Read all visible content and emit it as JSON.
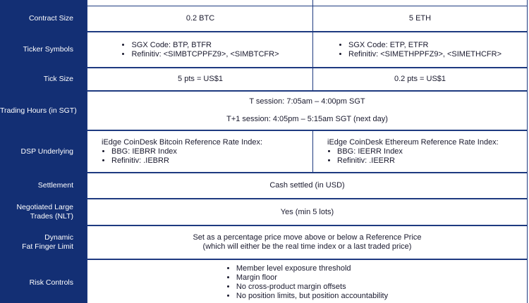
{
  "table": {
    "rows": [
      {
        "label": [
          "Contract Size"
        ],
        "cells": [
          {
            "lines": [
              "0.2 BTC"
            ]
          },
          {
            "lines": [
              "5 ETH"
            ]
          }
        ]
      },
      {
        "label": [
          "Ticker Symbols"
        ],
        "cells": [
          {
            "bullets": [
              "SGX Code: BTP, BTFR",
              "Refinitiv: <SIMBTCPPFZ9>, <SIMBTCFR>"
            ]
          },
          {
            "bullets": [
              "SGX Code: ETP, ETFR",
              "Refinitiv: <SIMETHPPFZ9>, <SIMETHCFR>"
            ]
          }
        ]
      },
      {
        "label": [
          "Tick Size"
        ],
        "cells": [
          {
            "lines": [
              "5 pts = US$1"
            ]
          },
          {
            "lines": [
              "0.2 pts = US$1"
            ]
          }
        ]
      },
      {
        "label": [
          "Trading Hours (in SGT)"
        ],
        "cells": [
          {
            "lines": [
              "T session: 7:05am – 4:00pm SGT",
              "T+1 session: 4:05pm – 5:15am SGT (next day)"
            ]
          }
        ]
      },
      {
        "label": [
          "DSP Underlying"
        ],
        "cells": [
          {
            "heading": "iEdge CoinDesk Bitcoin Reference Rate Index:",
            "bullets": [
              "BBG: IEBRR Index",
              "Refinitiv: .IEBRR"
            ]
          },
          {
            "heading": "iEdge CoinDesk Ethereum Reference Rate Index:",
            "bullets": [
              "BBG: IEERR Index",
              "Refinitiv: .IEERR"
            ]
          }
        ]
      },
      {
        "label": [
          "Settlement"
        ],
        "cells": [
          {
            "lines": [
              "Cash settled (in USD)"
            ]
          }
        ]
      },
      {
        "label": [
          "Negotiated Large",
          "Trades (NLT)"
        ],
        "cells": [
          {
            "lines": [
              "Yes (min 5 lots)"
            ]
          }
        ]
      },
      {
        "label": [
          "Dynamic",
          "Fat Finger Limit"
        ],
        "cells": [
          {
            "lines": [
              "Set as a percentage price move above or below a Reference Price",
              "(which will either be the real time index or a last traded price)"
            ]
          }
        ]
      },
      {
        "label": [
          "Risk Controls"
        ],
        "cells": [
          {
            "bullets": [
              "Member level exposure threshold",
              "Margin floor",
              "No cross-product margin offsets",
              "No position limits, but position accountability"
            ],
            "centered": true
          }
        ]
      }
    ]
  }
}
